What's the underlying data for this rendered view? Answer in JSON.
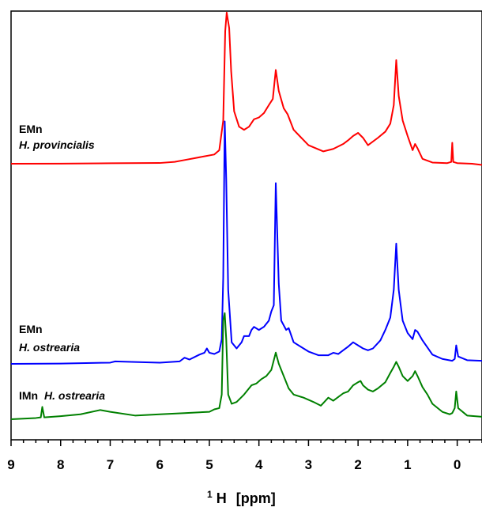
{
  "chart_data": {
    "type": "line",
    "xlabel_sup": "1",
    "xlabel_main": "H",
    "xlabel_unit": "[ppm]",
    "xlim": [
      9,
      -0.5
    ],
    "x_reversed": true,
    "x_ticks": [
      "9",
      "8",
      "7",
      "6",
      "5",
      "4",
      "3",
      "2",
      "1",
      "0"
    ],
    "y_ticks_shown": false,
    "grid": false,
    "series": [
      {
        "label_line1": "EMn",
        "label_line2": "H. provincialis",
        "color": "#ff0000",
        "offset": 0.0,
        "points": [
          [
            9.0,
            0
          ],
          [
            8.0,
            0.2
          ],
          [
            7.0,
            0.8
          ],
          [
            6.0,
            1.2
          ],
          [
            5.7,
            3
          ],
          [
            5.5,
            6
          ],
          [
            5.3,
            9
          ],
          [
            5.1,
            12
          ],
          [
            4.9,
            15
          ],
          [
            4.8,
            22
          ],
          [
            4.72,
            70
          ],
          [
            4.68,
            215
          ],
          [
            4.65,
            245
          ],
          [
            4.6,
            220
          ],
          [
            4.56,
            150
          ],
          [
            4.5,
            85
          ],
          [
            4.4,
            60
          ],
          [
            4.3,
            55
          ],
          [
            4.2,
            60
          ],
          [
            4.1,
            72
          ],
          [
            4.0,
            75
          ],
          [
            3.9,
            82
          ],
          [
            3.8,
            95
          ],
          [
            3.72,
            105
          ],
          [
            3.66,
            152
          ],
          [
            3.6,
            118
          ],
          [
            3.5,
            90
          ],
          [
            3.42,
            80
          ],
          [
            3.3,
            55
          ],
          [
            3.0,
            30
          ],
          [
            2.7,
            20
          ],
          [
            2.5,
            24
          ],
          [
            2.3,
            32
          ],
          [
            2.2,
            38
          ],
          [
            2.1,
            45
          ],
          [
            2.0,
            50
          ],
          [
            1.9,
            42
          ],
          [
            1.8,
            30
          ],
          [
            1.6,
            42
          ],
          [
            1.45,
            52
          ],
          [
            1.35,
            65
          ],
          [
            1.28,
            95
          ],
          [
            1.23,
            168
          ],
          [
            1.18,
            110
          ],
          [
            1.1,
            70
          ],
          [
            1.0,
            45
          ],
          [
            0.9,
            22
          ],
          [
            0.85,
            32
          ],
          [
            0.8,
            25
          ],
          [
            0.7,
            8
          ],
          [
            0.5,
            2
          ],
          [
            0.2,
            1
          ],
          [
            0.12,
            3
          ],
          [
            0.1,
            34
          ],
          [
            0.08,
            3
          ],
          [
            0.0,
            1
          ],
          [
            -0.3,
            0
          ],
          [
            -0.5,
            -2
          ]
        ]
      },
      {
        "label_line1": "EMn",
        "label_line2": "H. ostrearia",
        "color": "#0000ff",
        "offset": 0.0,
        "points": [
          [
            9.0,
            0
          ],
          [
            8.0,
            0.5
          ],
          [
            7.0,
            2
          ],
          [
            6.9,
            4
          ],
          [
            6.5,
            3
          ],
          [
            6.0,
            2
          ],
          [
            5.6,
            4
          ],
          [
            5.5,
            10
          ],
          [
            5.4,
            7
          ],
          [
            5.2,
            15
          ],
          [
            5.1,
            18
          ],
          [
            5.05,
            25
          ],
          [
            5.0,
            18
          ],
          [
            4.9,
            16
          ],
          [
            4.8,
            20
          ],
          [
            4.75,
            40
          ],
          [
            4.72,
            140
          ],
          [
            4.69,
            393
          ],
          [
            4.66,
            300
          ],
          [
            4.62,
            120
          ],
          [
            4.55,
            35
          ],
          [
            4.45,
            25
          ],
          [
            4.35,
            35
          ],
          [
            4.3,
            45
          ],
          [
            4.2,
            45
          ],
          [
            4.15,
            55
          ],
          [
            4.1,
            60
          ],
          [
            4.0,
            55
          ],
          [
            3.9,
            60
          ],
          [
            3.8,
            70
          ],
          [
            3.75,
            85
          ],
          [
            3.7,
            95
          ],
          [
            3.66,
            293
          ],
          [
            3.6,
            130
          ],
          [
            3.55,
            70
          ],
          [
            3.45,
            55
          ],
          [
            3.4,
            58
          ],
          [
            3.3,
            35
          ],
          [
            3.0,
            20
          ],
          [
            2.8,
            14
          ],
          [
            2.6,
            14
          ],
          [
            2.5,
            18
          ],
          [
            2.4,
            16
          ],
          [
            2.3,
            22
          ],
          [
            2.2,
            28
          ],
          [
            2.1,
            35
          ],
          [
            2.0,
            30
          ],
          [
            1.9,
            25
          ],
          [
            1.8,
            22
          ],
          [
            1.7,
            25
          ],
          [
            1.55,
            38
          ],
          [
            1.45,
            55
          ],
          [
            1.35,
            75
          ],
          [
            1.28,
            120
          ],
          [
            1.23,
            195
          ],
          [
            1.18,
            120
          ],
          [
            1.1,
            70
          ],
          [
            1.0,
            50
          ],
          [
            0.9,
            40
          ],
          [
            0.85,
            55
          ],
          [
            0.8,
            52
          ],
          [
            0.7,
            38
          ],
          [
            0.5,
            15
          ],
          [
            0.3,
            8
          ],
          [
            0.1,
            5
          ],
          [
            0.05,
            8
          ],
          [
            0.02,
            30
          ],
          [
            -0.02,
            12
          ],
          [
            -0.2,
            6
          ],
          [
            -0.5,
            5
          ]
        ]
      },
      {
        "label_line1": "IMn",
        "label_line2": "H. ostrearia",
        "color": "#008000",
        "offset": 0.0,
        "points": [
          [
            9.0,
            0
          ],
          [
            8.5,
            2
          ],
          [
            8.4,
            3
          ],
          [
            8.37,
            20
          ],
          [
            8.33,
            3
          ],
          [
            8.0,
            5
          ],
          [
            7.6,
            8
          ],
          [
            7.2,
            15
          ],
          [
            7.0,
            12
          ],
          [
            6.5,
            6
          ],
          [
            6.0,
            8
          ],
          [
            5.5,
            10
          ],
          [
            5.0,
            12
          ],
          [
            4.9,
            16
          ],
          [
            4.8,
            18
          ],
          [
            4.75,
            40
          ],
          [
            4.72,
            160
          ],
          [
            4.69,
            172
          ],
          [
            4.66,
            130
          ],
          [
            4.62,
            40
          ],
          [
            4.55,
            25
          ],
          [
            4.45,
            28
          ],
          [
            4.3,
            40
          ],
          [
            4.15,
            55
          ],
          [
            4.05,
            58
          ],
          [
            3.95,
            65
          ],
          [
            3.85,
            70
          ],
          [
            3.75,
            80
          ],
          [
            3.66,
            108
          ],
          [
            3.6,
            90
          ],
          [
            3.5,
            70
          ],
          [
            3.4,
            50
          ],
          [
            3.3,
            40
          ],
          [
            3.1,
            35
          ],
          [
            2.9,
            28
          ],
          [
            2.75,
            22
          ],
          [
            2.6,
            35
          ],
          [
            2.5,
            30
          ],
          [
            2.3,
            42
          ],
          [
            2.2,
            45
          ],
          [
            2.1,
            55
          ],
          [
            2.0,
            60
          ],
          [
            1.95,
            62
          ],
          [
            1.9,
            55
          ],
          [
            1.8,
            48
          ],
          [
            1.7,
            45
          ],
          [
            1.6,
            50
          ],
          [
            1.45,
            60
          ],
          [
            1.35,
            75
          ],
          [
            1.28,
            85
          ],
          [
            1.23,
            93
          ],
          [
            1.18,
            85
          ],
          [
            1.1,
            70
          ],
          [
            1.0,
            62
          ],
          [
            0.9,
            70
          ],
          [
            0.85,
            78
          ],
          [
            0.8,
            70
          ],
          [
            0.7,
            52
          ],
          [
            0.6,
            40
          ],
          [
            0.5,
            25
          ],
          [
            0.3,
            12
          ],
          [
            0.15,
            8
          ],
          [
            0.1,
            10
          ],
          [
            0.05,
            18
          ],
          [
            0.02,
            45
          ],
          [
            -0.02,
            18
          ],
          [
            -0.2,
            6
          ],
          [
            -0.5,
            4
          ]
        ]
      }
    ]
  }
}
